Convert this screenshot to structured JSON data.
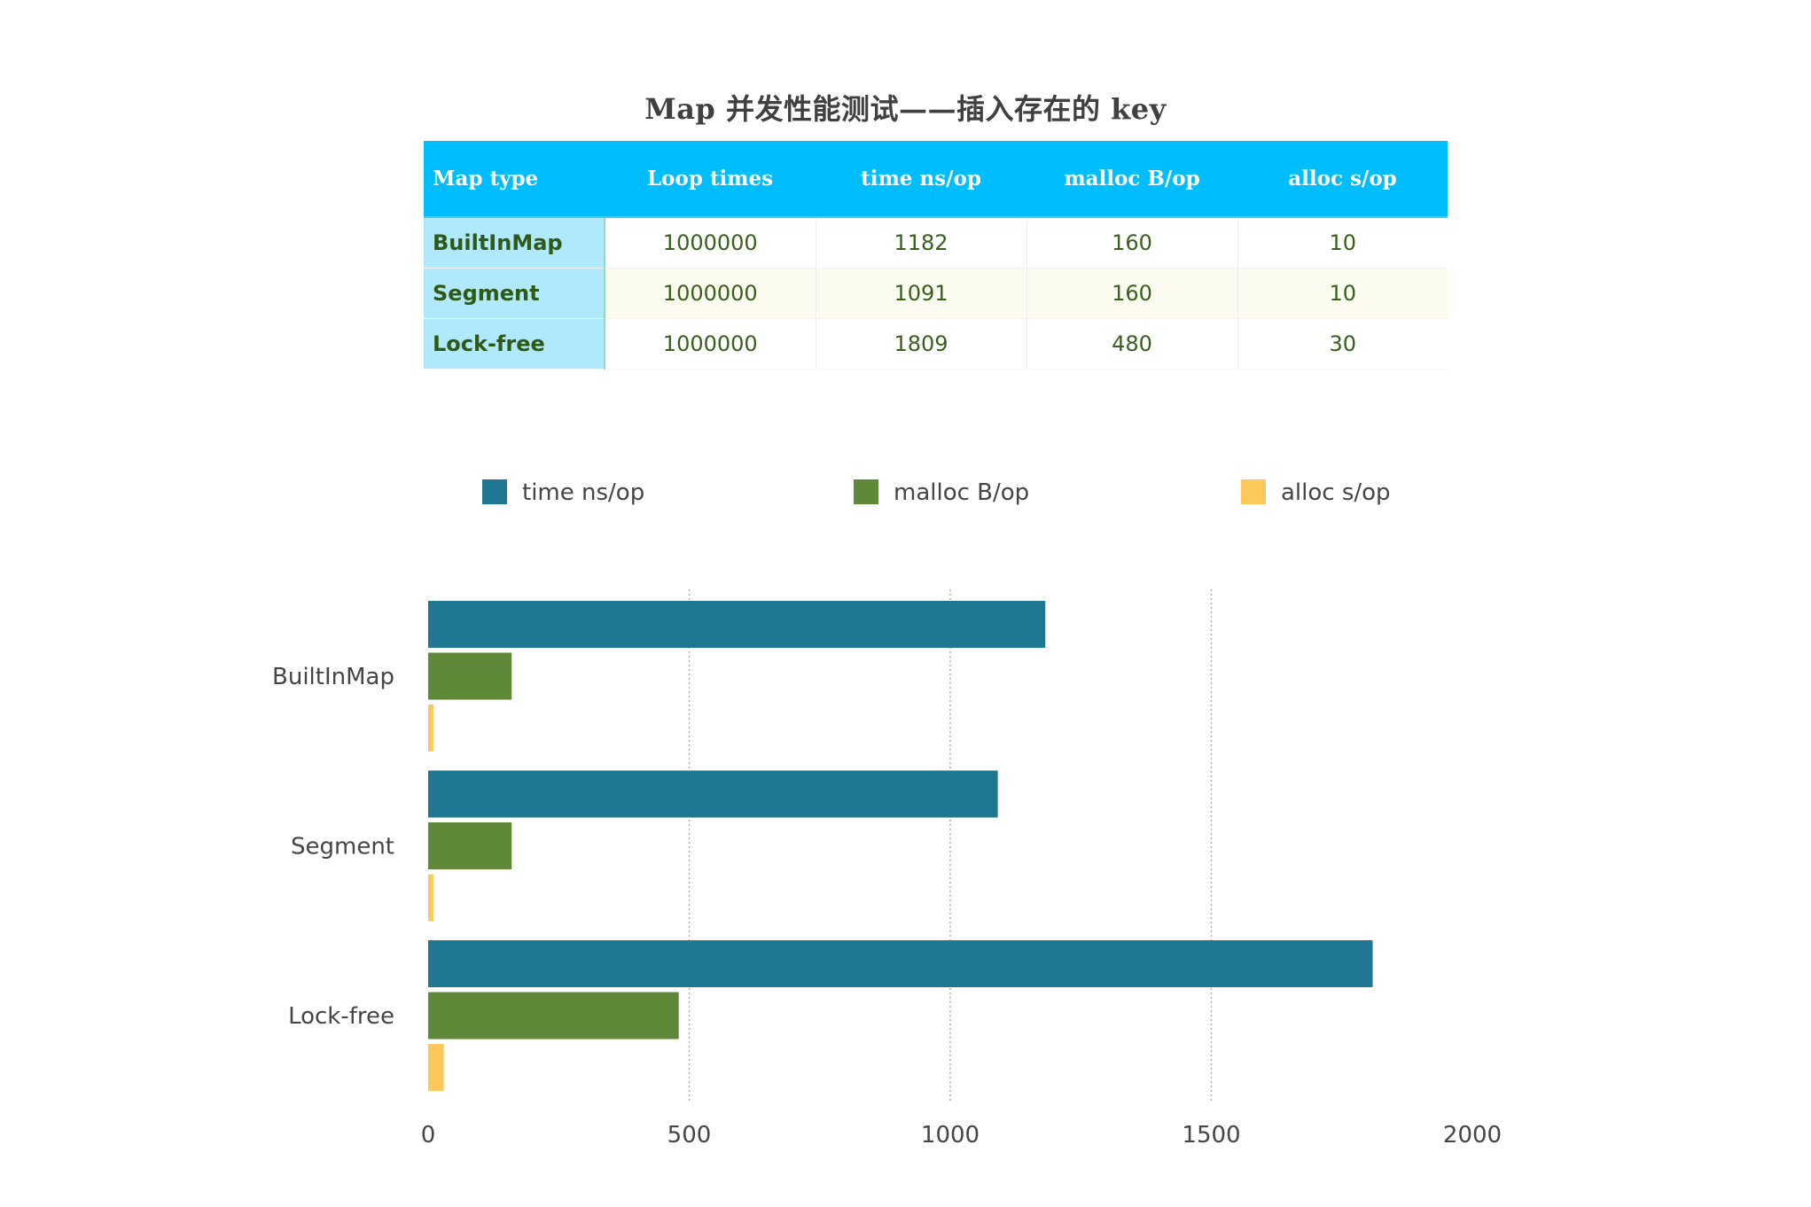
{
  "title": "Map 并发性能测试——插入存在的 key",
  "table": {
    "headers": [
      "Map type",
      "Loop times",
      "time ns/op",
      "malloc B/op",
      "alloc s/op"
    ],
    "rows": [
      [
        "BuiltInMap",
        "1000000",
        "1182",
        "160",
        "10"
      ],
      [
        "Segment",
        "1000000",
        "1091",
        "160",
        "10"
      ],
      [
        "Lock-free",
        "1000000",
        "1809",
        "480",
        "30"
      ]
    ]
  },
  "colors": {
    "header_bg": "#00bdfd",
    "row_header_bg": "#b0e8fc",
    "text_green": "#38601c",
    "time": "#1f7791",
    "malloc": "#608839",
    "alloc": "#fcc85c"
  },
  "chart_data": {
    "type": "bar",
    "orientation": "horizontal",
    "categories": [
      "BuiltInMap",
      "Segment",
      "Lock-free"
    ],
    "series": [
      {
        "name": "time ns/op",
        "values": [
          1182,
          1091,
          1809
        ],
        "color": "#1f7791"
      },
      {
        "name": "malloc B/op",
        "values": [
          160,
          160,
          480
        ],
        "color": "#608839"
      },
      {
        "name": "alloc s/op",
        "values": [
          10,
          10,
          30
        ],
        "color": "#fcc85c"
      }
    ],
    "xlim": [
      0,
      2000
    ],
    "xticks": [
      "0",
      "500",
      "1000",
      "1500",
      "2000"
    ],
    "grid": "vertical dotted",
    "legend_position": "top"
  }
}
